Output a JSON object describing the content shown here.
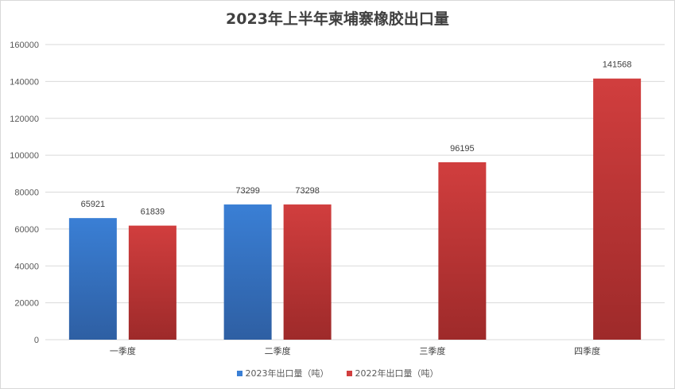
{
  "chart_data": {
    "type": "bar",
    "title": "2023年上半年柬埔寨橡胶出口量",
    "categories": [
      "一季度",
      "二季度",
      "三季度",
      "四季度"
    ],
    "series": [
      {
        "name": "2023年出口量（吨）",
        "values": [
          65921,
          73299,
          null,
          null
        ],
        "color": "#2e5fa3",
        "color_light": "#3a7fd5"
      },
      {
        "name": "2022年出口量（吨）",
        "values": [
          61839,
          73298,
          96195,
          141568
        ],
        "color": "#9e2a2a",
        "color_light": "#d13e3e"
      }
    ],
    "ylim": [
      0,
      160000
    ],
    "yticks": [
      0,
      20000,
      40000,
      60000,
      80000,
      100000,
      120000,
      140000,
      160000
    ],
    "grid": true,
    "legend": "bottom",
    "data_labels": true
  }
}
